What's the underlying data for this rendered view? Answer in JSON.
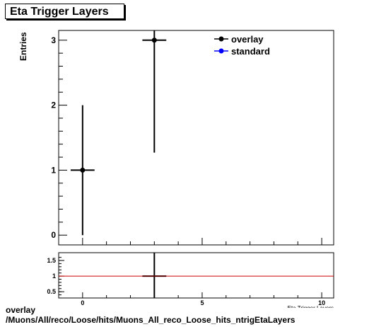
{
  "title": "Eta Trigger Layers",
  "footer": {
    "line1": "overlay",
    "line2": "/Muons/All/reco/Loose/hits/Muons_All_reco_Loose_hits_ntrigEtaLayers"
  },
  "chart_data": [
    {
      "type": "scatter",
      "ylabel": "Entries",
      "xlabel": "Eta Trigger Layers",
      "xlim": [
        -1,
        10.5
      ],
      "ylim": [
        -0.15,
        3.15
      ],
      "xticks": [
        "0",
        "5",
        "10"
      ],
      "yticks": [
        "0",
        "1",
        "2",
        "3"
      ],
      "grid": false,
      "legend_position": "top-right",
      "series": [
        {
          "name": "overlay",
          "color": "#000000",
          "points": [
            {
              "x": 0,
              "y": 1,
              "xerr": 0.5,
              "ylo": 0,
              "yhi": 2
            },
            {
              "x": 3,
              "y": 3,
              "xerr": 0.5,
              "ylo": 1.27,
              "yhi": 3.15
            }
          ]
        },
        {
          "name": "standard",
          "color": "#0000ff",
          "points": []
        }
      ]
    },
    {
      "type": "line",
      "ylim": [
        0.3,
        1.75
      ],
      "yticks": [
        "0.5",
        "1",
        "1.5"
      ],
      "reference_line": {
        "y": 1,
        "color": "#cc0000"
      },
      "points": [
        {
          "x": 3,
          "y": 1,
          "xerr": 0.5,
          "ylo": 0.3,
          "yhi": 1.75
        }
      ]
    }
  ]
}
